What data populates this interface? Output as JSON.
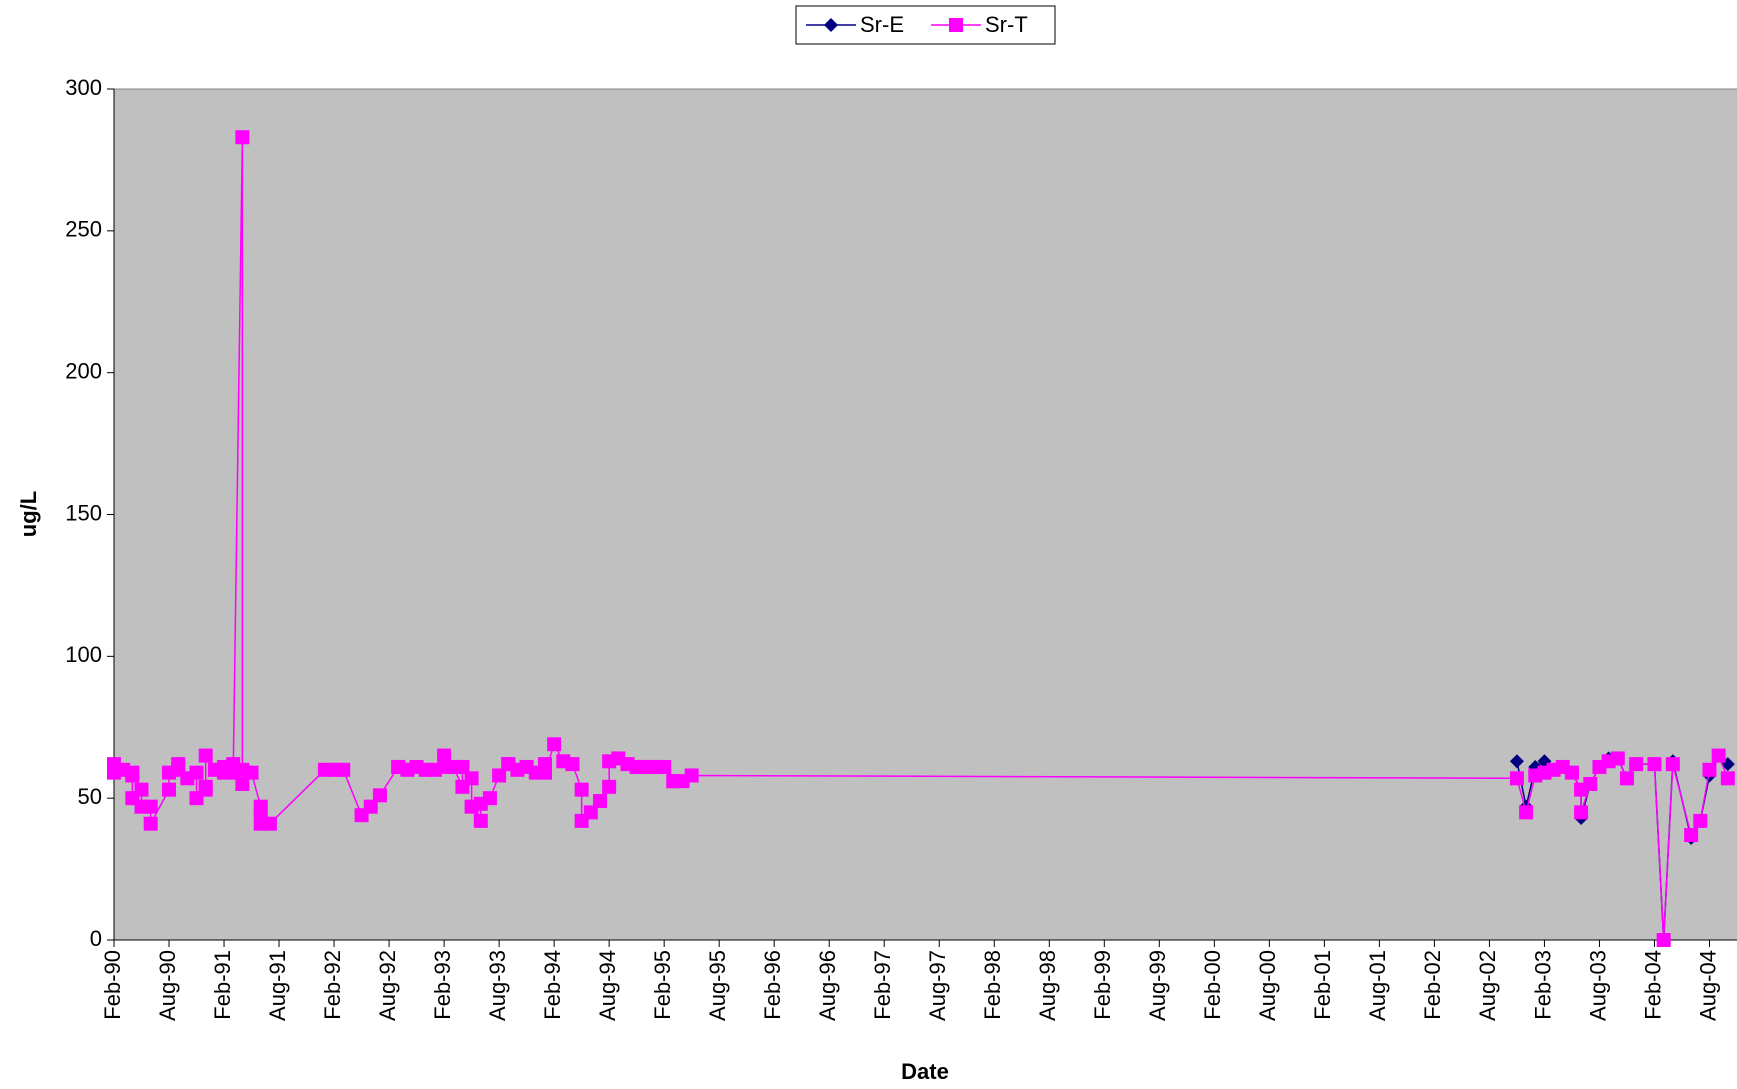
{
  "chart_data": {
    "type": "line",
    "x_label": "Date",
    "y_label": "ug/L",
    "xlim": [
      "1990-02",
      "2004-11"
    ],
    "ylim": [
      0,
      300
    ],
    "yticks": [
      0,
      50,
      100,
      150,
      200,
      250,
      300
    ],
    "xticks": [
      {
        "value": "1990-02",
        "label": "Feb-90"
      },
      {
        "value": "1990-08",
        "label": "Aug-90"
      },
      {
        "value": "1991-02",
        "label": "Feb-91"
      },
      {
        "value": "1991-08",
        "label": "Aug-91"
      },
      {
        "value": "1992-02",
        "label": "Feb-92"
      },
      {
        "value": "1992-08",
        "label": "Aug-92"
      },
      {
        "value": "1993-02",
        "label": "Feb-93"
      },
      {
        "value": "1993-08",
        "label": "Aug-93"
      },
      {
        "value": "1994-02",
        "label": "Feb-94"
      },
      {
        "value": "1994-08",
        "label": "Aug-94"
      },
      {
        "value": "1995-02",
        "label": "Feb-95"
      },
      {
        "value": "1995-08",
        "label": "Aug-95"
      },
      {
        "value": "1996-02",
        "label": "Feb-96"
      },
      {
        "value": "1996-08",
        "label": "Aug-96"
      },
      {
        "value": "1997-02",
        "label": "Feb-97"
      },
      {
        "value": "1997-08",
        "label": "Aug-97"
      },
      {
        "value": "1998-02",
        "label": "Feb-98"
      },
      {
        "value": "1998-08",
        "label": "Aug-98"
      },
      {
        "value": "1999-02",
        "label": "Feb-99"
      },
      {
        "value": "1999-08",
        "label": "Aug-99"
      },
      {
        "value": "2000-02",
        "label": "Feb-00"
      },
      {
        "value": "2000-08",
        "label": "Aug-00"
      },
      {
        "value": "2001-02",
        "label": "Feb-01"
      },
      {
        "value": "2001-08",
        "label": "Aug-01"
      },
      {
        "value": "2002-02",
        "label": "Feb-02"
      },
      {
        "value": "2002-08",
        "label": "Aug-02"
      },
      {
        "value": "2003-02",
        "label": "Feb-03"
      },
      {
        "value": "2003-08",
        "label": "Aug-03"
      },
      {
        "value": "2004-02",
        "label": "Feb-04"
      },
      {
        "value": "2004-08",
        "label": "Aug-04"
      }
    ],
    "grid": false,
    "legend": "top",
    "series": [
      {
        "name": "Sr-E",
        "color": "#000080",
        "marker": "diamond",
        "x": [
          "2002-11",
          "2002-12",
          "2003-01",
          "2003-02",
          "2003-03",
          "2003-04",
          "2003-05",
          "2003-06",
          "2003-06",
          "2003-07",
          "2003-08",
          "2003-09",
          "2003-10",
          "2003-11",
          "2003-12",
          "2004-02",
          "2004-03",
          "2004-04",
          "2004-06",
          "2004-07",
          "2004-08",
          "2004-09",
          "2004-10"
        ],
        "values": [
          63,
          47,
          61,
          63,
          60,
          61,
          59,
          53,
          43,
          55,
          61,
          64,
          64,
          57,
          62,
          62,
          0,
          63,
          36,
          42,
          58,
          65,
          62
        ]
      },
      {
        "name": "Sr-T",
        "color": "#ff00ff",
        "marker": "square",
        "x": [
          "1990-02",
          "1990-02",
          "1990-03",
          "1990-04",
          "1990-04",
          "1990-04",
          "1990-05",
          "1990-05",
          "1990-06",
          "1990-06",
          "1990-08",
          "1990-08",
          "1990-09",
          "1990-09",
          "1990-10",
          "1990-11",
          "1990-11",
          "1990-12",
          "1990-12",
          "1990-12",
          "1991-01",
          "1991-02",
          "1991-02",
          "1991-03",
          "1991-03",
          "1991-04",
          "1991-04",
          "1991-04",
          "1991-05",
          "1991-06",
          "1991-06",
          "1991-06",
          "1991-07",
          "1992-01",
          "1992-02",
          "1992-03",
          "1992-05",
          "1992-06",
          "1992-07",
          "1992-09",
          "1992-09",
          "1992-10",
          "1992-11",
          "1992-12",
          "1993-01",
          "1993-02",
          "1993-02",
          "1993-03",
          "1993-04",
          "1993-04",
          "1993-05",
          "1993-05",
          "1993-06",
          "1993-06",
          "1993-07",
          "1993-08",
          "1993-09",
          "1993-09",
          "1993-10",
          "1993-11",
          "1993-12",
          "1994-01",
          "1994-01",
          "1994-02",
          "1994-03",
          "1994-04",
          "1994-05",
          "1994-05",
          "1994-06",
          "1994-07",
          "1994-08",
          "1994-08",
          "1994-09",
          "1994-10",
          "1994-11",
          "1994-11",
          "1994-12",
          "1995-01",
          "1995-02",
          "1995-03",
          "1995-03",
          "1995-04",
          "1995-05",
          "2002-11",
          "2002-12",
          "2003-01",
          "2003-02",
          "2003-03",
          "2003-04",
          "2003-05",
          "2003-06",
          "2003-06",
          "2003-07",
          "2003-08",
          "2003-09",
          "2003-10",
          "2003-11",
          "2003-12",
          "2004-02",
          "2004-03",
          "2004-04",
          "2004-06",
          "2004-07",
          "2004-08",
          "2004-09",
          "2004-10"
        ],
        "values": [
          59,
          62,
          60,
          58,
          59,
          50,
          53,
          47,
          47,
          41,
          53,
          59,
          60,
          62,
          57,
          59,
          50,
          54,
          53,
          65,
          60,
          59,
          61,
          62,
          59,
          283,
          55,
          60,
          59,
          47,
          45,
          41,
          41,
          60,
          60,
          60,
          44,
          47,
          51,
          61,
          61,
          60,
          61,
          60,
          60,
          61,
          65,
          61,
          54,
          61,
          57,
          47,
          42,
          48,
          50,
          58,
          62,
          62,
          60,
          61,
          59,
          62,
          59,
          69,
          63,
          62,
          53,
          42,
          45,
          49,
          54,
          63,
          64,
          62,
          61,
          61,
          61,
          61,
          61,
          56,
          56,
          56,
          58,
          57,
          45,
          58,
          59,
          60,
          61,
          59,
          53,
          45,
          55,
          61,
          63,
          64,
          57,
          62,
          62,
          0,
          62,
          37,
          42,
          60,
          65,
          57
        ]
      }
    ]
  }
}
